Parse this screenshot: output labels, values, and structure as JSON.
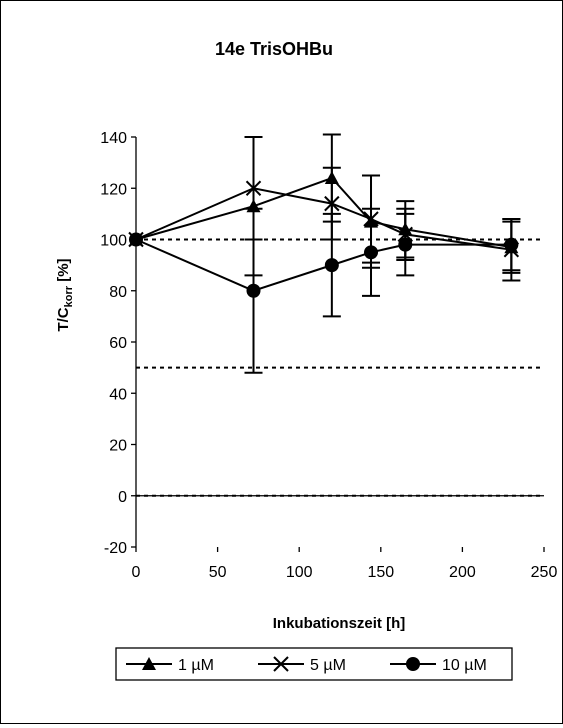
{
  "chart_data": {
    "type": "line",
    "title": "14e TrisOHBu",
    "xlabel": "Inkubationszeit [h]",
    "ylabel_main": "T/C",
    "ylabel_sub": "korr",
    "ylabel_suffix": " [%]",
    "xlim": [
      0,
      250
    ],
    "ylim": [
      -20,
      140
    ],
    "xticks": [
      0,
      50,
      100,
      150,
      200,
      250
    ],
    "yticks": [
      -20,
      0,
      20,
      40,
      60,
      80,
      100,
      120,
      140
    ],
    "reference_lines": [
      100,
      50,
      0
    ],
    "grid": false,
    "legend_position": "bottom",
    "series": [
      {
        "name": "1 µM",
        "marker": "triangle",
        "x": [
          0,
          72,
          120,
          144,
          165,
          230
        ],
        "y": [
          100,
          113,
          124,
          107,
          104,
          97
        ],
        "err": [
          0,
          27,
          17,
          18,
          11,
          10
        ]
      },
      {
        "name": "5 µM",
        "marker": "x",
        "x": [
          0,
          72,
          120,
          144,
          165,
          230
        ],
        "y": [
          100,
          120,
          114,
          108,
          102,
          96
        ],
        "err": [
          0,
          20,
          14,
          17,
          10,
          12
        ]
      },
      {
        "name": "10 µM",
        "marker": "circle",
        "x": [
          0,
          72,
          120,
          144,
          165,
          230
        ],
        "y": [
          100,
          80,
          90,
          95,
          98,
          98
        ],
        "err": [
          0,
          32,
          20,
          17,
          12,
          10
        ]
      }
    ]
  }
}
